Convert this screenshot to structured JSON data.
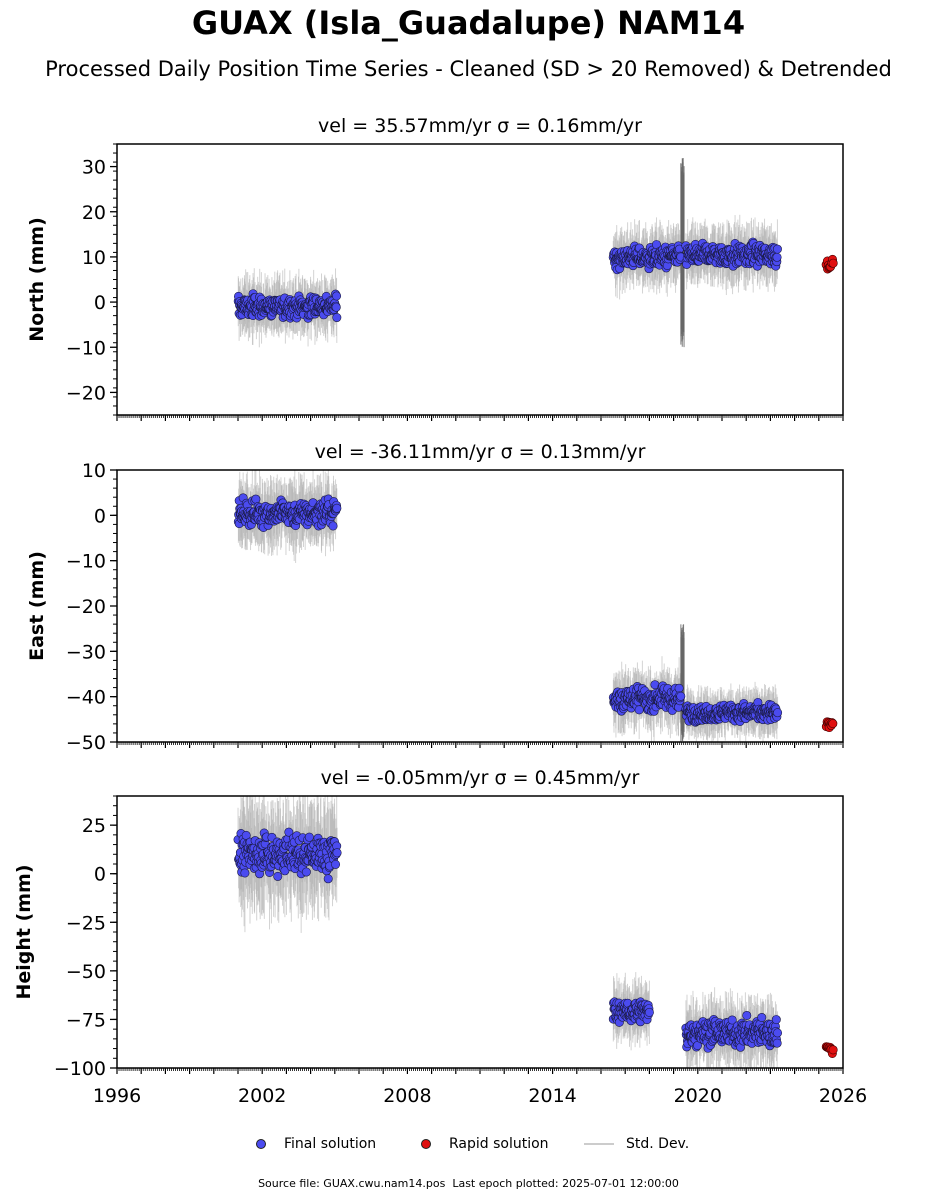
{
  "title": "GUAX (Isla_Guadalupe) NAM14",
  "subtitle": "Processed Daily Position Time Series - Cleaned (SD > 20 Removed) & Detrended",
  "footer": {
    "source": "Source file: GUAX.cwu.nam14.pos",
    "last_epoch": "Last epoch plotted: 2025-07-01 12:00:00"
  },
  "legend": {
    "final": "Final solution",
    "rapid": "Rapid solution",
    "std": "Std. Dev."
  },
  "colors": {
    "final": "#4b4bf0",
    "rapid": "#e01010",
    "std": "#b0b0b0",
    "axis": "#000000"
  },
  "chart_data": [
    {
      "type": "scatter",
      "component": "North",
      "title": "vel = 35.57mm/yr   σ = 0.16mm/yr",
      "ylabel": "North (mm)",
      "xlim": [
        1996,
        2026
      ],
      "ylim": [
        -25,
        35
      ],
      "yticks": [
        -20,
        -10,
        0,
        10,
        20,
        30
      ],
      "xticks": [
        1996,
        2002,
        2008,
        2014,
        2020,
        2026
      ],
      "series": [
        {
          "name": "Final solution",
          "segments": [
            {
              "x": [
                2001.0,
                2005.1
              ],
              "center": -1,
              "spread": 5
            },
            {
              "x": [
                2016.5,
                2019.3
              ],
              "center": 10,
              "spread": 5
            },
            {
              "x": [
                2019.5,
                2023.3
              ],
              "center": 10.5,
              "spread": 5
            }
          ]
        },
        {
          "name": "Rapid solution",
          "segments": [
            {
              "x": [
                2025.3,
                2025.6
              ],
              "center": 8.5,
              "spread": 3
            }
          ]
        }
      ]
    },
    {
      "type": "scatter",
      "component": "East",
      "title": "vel = -36.11mm/yr   σ = 0.13mm/yr",
      "ylabel": "East (mm)",
      "xlim": [
        1996,
        2026
      ],
      "ylim": [
        -50,
        10
      ],
      "yticks": [
        -50,
        -40,
        -30,
        -20,
        -10,
        0,
        10
      ],
      "xticks": [
        1996,
        2002,
        2008,
        2014,
        2020,
        2026
      ],
      "series": [
        {
          "name": "Final solution",
          "segments": [
            {
              "x": [
                2001.0,
                2005.1
              ],
              "center": 0.5,
              "spread": 6
            },
            {
              "x": [
                2016.5,
                2019.3
              ],
              "center": -40.5,
              "spread": 5
            },
            {
              "x": [
                2019.5,
                2023.3
              ],
              "center": -43.5,
              "spread": 4
            }
          ]
        },
        {
          "name": "Rapid solution",
          "segments": [
            {
              "x": [
                2025.3,
                2025.6
              ],
              "center": -46,
              "spread": 2
            }
          ]
        }
      ]
    },
    {
      "type": "scatter",
      "component": "Height",
      "title": "vel = -0.05mm/yr   σ = 0.45mm/yr",
      "ylabel": "Height (mm)",
      "xlim": [
        1996,
        2026
      ],
      "ylim": [
        -100,
        40
      ],
      "yticks": [
        -100,
        -75,
        -50,
        -25,
        0,
        25
      ],
      "xticks": [
        1996,
        2002,
        2008,
        2014,
        2020,
        2026
      ],
      "series": [
        {
          "name": "Final solution",
          "segments": [
            {
              "x": [
                2001.0,
                2005.1
              ],
              "center": 10,
              "spread": 22
            },
            {
              "x": [
                2016.5,
                2018.0
              ],
              "center": -71,
              "spread": 12
            },
            {
              "x": [
                2019.5,
                2023.3
              ],
              "center": -82,
              "spread": 14
            }
          ]
        },
        {
          "name": "Rapid solution",
          "segments": [
            {
              "x": [
                2025.3,
                2025.6
              ],
              "center": -90,
              "spread": 4
            }
          ]
        }
      ]
    }
  ]
}
